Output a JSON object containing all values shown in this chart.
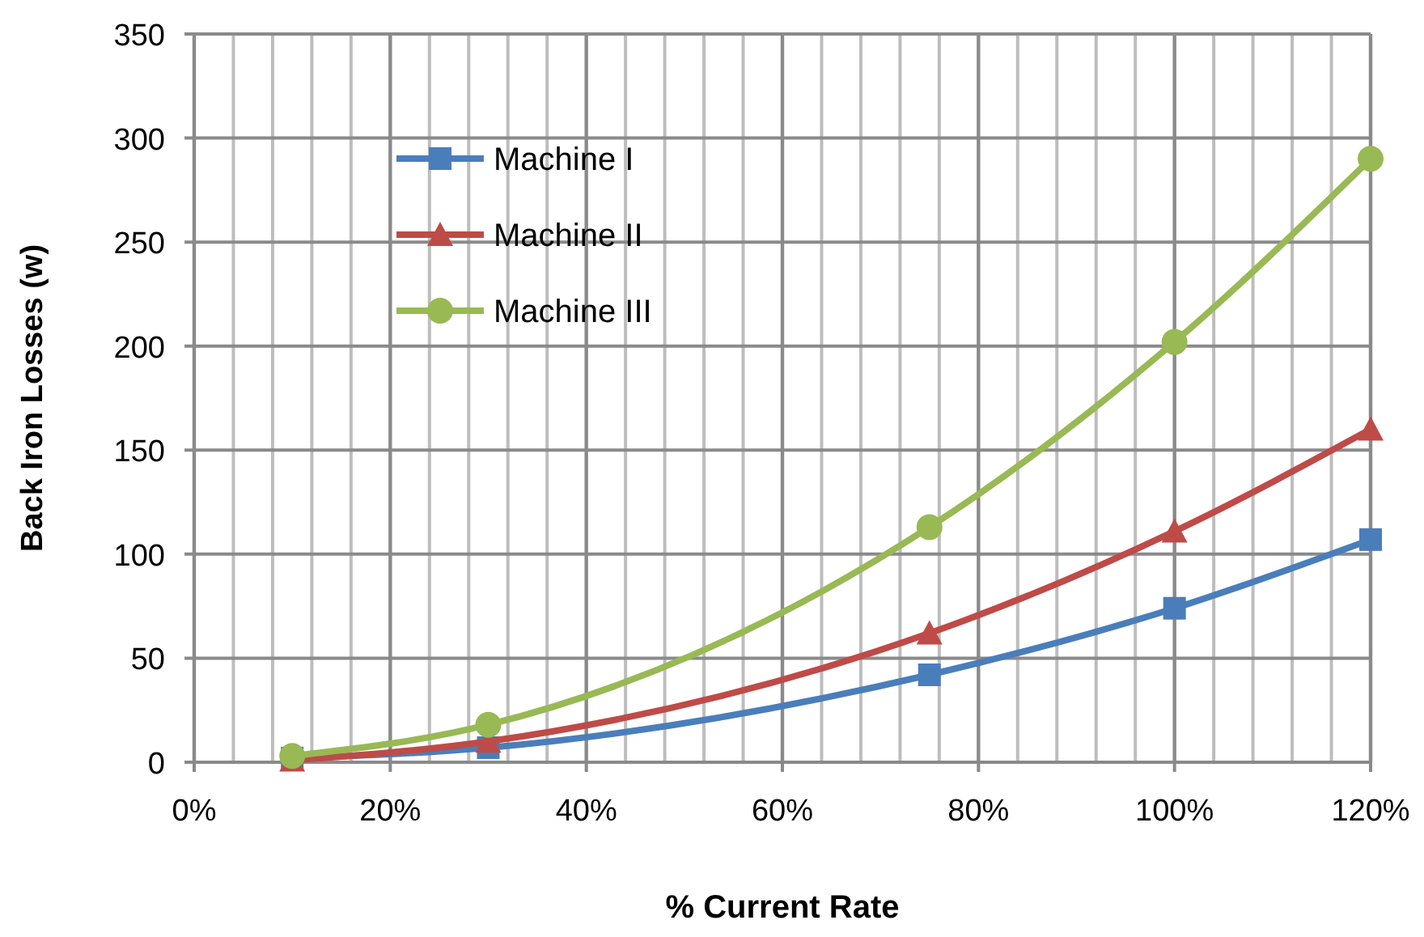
{
  "chart_data": {
    "type": "line",
    "xlabel": "% Current Rate",
    "ylabel": "Back Iron Losses (w)",
    "x": [
      10,
      30,
      75,
      100,
      120
    ],
    "series": [
      {
        "name": "Machine I",
        "color": "#4a7ebb",
        "marker": "square",
        "values": [
          2,
          7,
          42,
          74,
          107
        ]
      },
      {
        "name": "Machine II",
        "color": "#be4b48",
        "marker": "triangle",
        "values": [
          1,
          10,
          62,
          111,
          160
        ]
      },
      {
        "name": "Machine III",
        "color": "#98b954",
        "marker": "circle",
        "values": [
          3,
          18,
          113,
          202,
          290
        ]
      }
    ],
    "xlim": [
      0,
      120
    ],
    "xticks": [
      {
        "value": 0,
        "label": "0%"
      },
      {
        "value": 4,
        "label": null
      },
      {
        "value": 8,
        "label": null
      },
      {
        "value": 12,
        "label": null
      },
      {
        "value": 16,
        "label": null
      },
      {
        "value": 20,
        "label": "20%"
      },
      {
        "value": 24,
        "label": null
      },
      {
        "value": 28,
        "label": null
      },
      {
        "value": 32,
        "label": null
      },
      {
        "value": 36,
        "label": null
      },
      {
        "value": 40,
        "label": "40%"
      },
      {
        "value": 44,
        "label": null
      },
      {
        "value": 48,
        "label": null
      },
      {
        "value": 52,
        "label": null
      },
      {
        "value": 56,
        "label": null
      },
      {
        "value": 60,
        "label": "60%"
      },
      {
        "value": 64,
        "label": null
      },
      {
        "value": 68,
        "label": null
      },
      {
        "value": 72,
        "label": null
      },
      {
        "value": 76,
        "label": null
      },
      {
        "value": 80,
        "label": "80%"
      },
      {
        "value": 84,
        "label": null
      },
      {
        "value": 88,
        "label": null
      },
      {
        "value": 92,
        "label": null
      },
      {
        "value": 96,
        "label": null
      },
      {
        "value": 100,
        "label": "100%"
      },
      {
        "value": 104,
        "label": null
      },
      {
        "value": 108,
        "label": null
      },
      {
        "value": 112,
        "label": null
      },
      {
        "value": 116,
        "label": null
      },
      {
        "value": 120,
        "label": "120%"
      }
    ],
    "ylim": [
      0,
      350
    ],
    "yticks": [
      0,
      50,
      100,
      150,
      200,
      250,
      300,
      350
    ],
    "grid": true,
    "legend": "top left",
    "line_style": "solid"
  }
}
